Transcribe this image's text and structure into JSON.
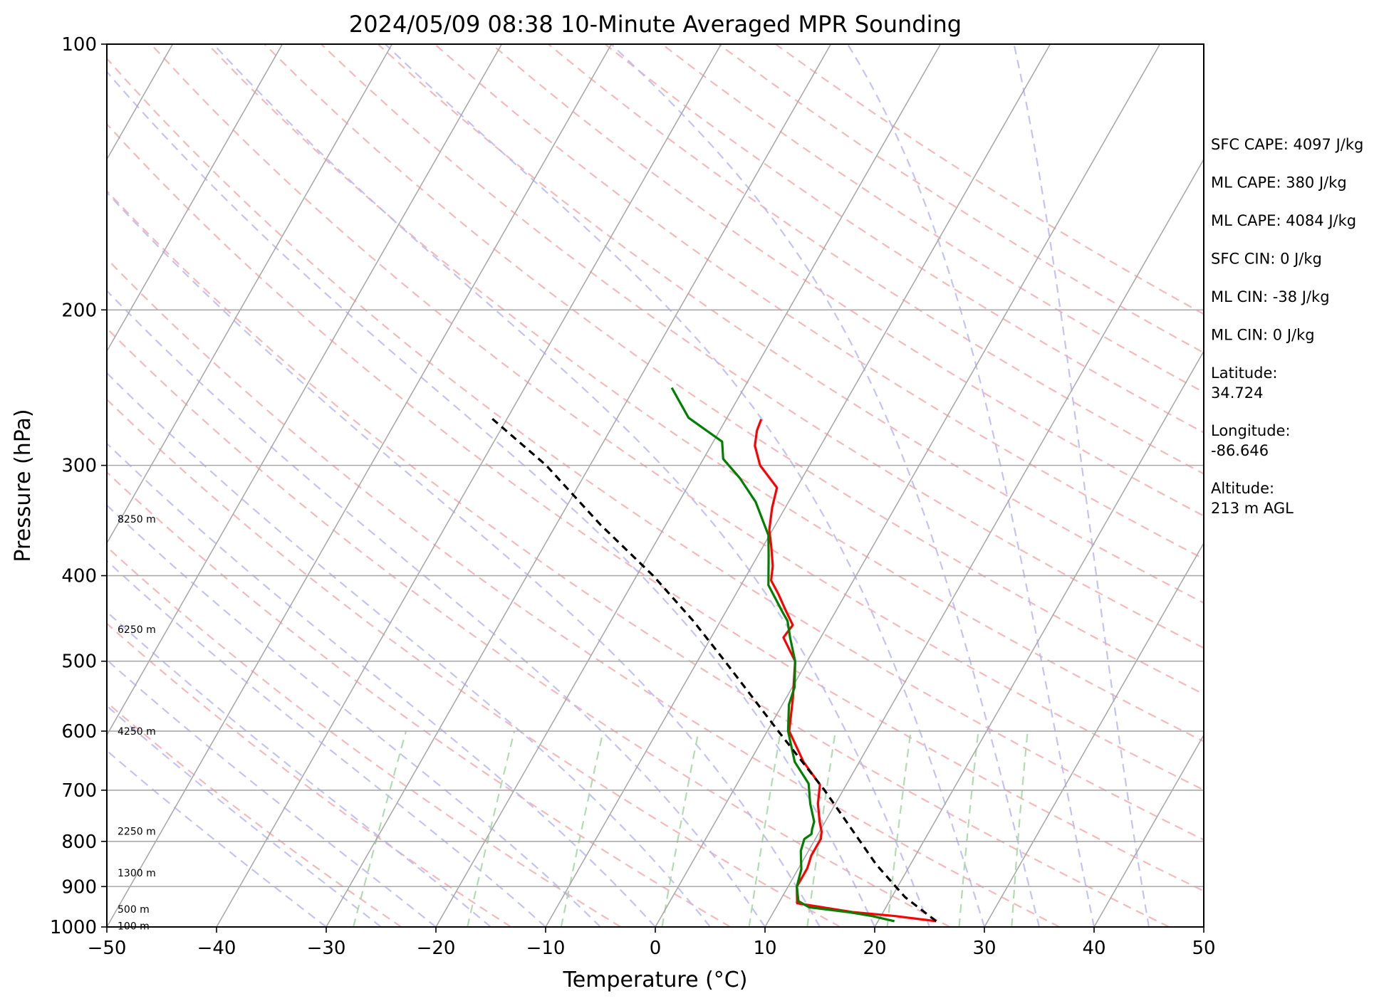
{
  "chart_data": {
    "type": "skew-t",
    "title": "2024/05/09 08:38 10-Minute Averaged MPR Sounding",
    "xlabel": "Temperature (°C)",
    "ylabel": "Pressure (hPa)",
    "xlim": [
      -50,
      50
    ],
    "ylim": [
      1000,
      100
    ],
    "y_scale": "log",
    "x_ticks": [
      "−50",
      "−40",
      "−30",
      "−20",
      "−10",
      "0",
      "10",
      "20",
      "30",
      "40",
      "50"
    ],
    "y_ticks": [
      "1000",
      "900",
      "800",
      "700",
      "600",
      "500",
      "400",
      "300",
      "200",
      "100"
    ],
    "grid": "isobars only",
    "background_lines": {
      "dry_adiabats": "dashed light red",
      "moist_adiabats": "dashed light blue",
      "mixing_ratio": "dashed light green",
      "isotherms": "solid gray, skewed"
    },
    "height_labels": [
      {
        "text": "100 m",
        "p": 997
      },
      {
        "text": "500 m",
        "p": 955
      },
      {
        "text": "1300 m",
        "p": 868
      },
      {
        "text": "2250 m",
        "p": 779
      },
      {
        "text": "4250 m",
        "p": 600
      },
      {
        "text": "6250 m",
        "p": 460
      },
      {
        "text": "8250 m",
        "p": 345
      }
    ],
    "series": [
      {
        "color": "#ff0000",
        "points": [
          [
            985,
            25.3
          ],
          [
            972,
            21.3
          ],
          [
            962,
            17.2
          ],
          [
            940,
            11.7
          ],
          [
            900,
            10.8
          ],
          [
            858,
            10.8
          ],
          [
            830,
            10.5
          ],
          [
            805,
            10.5
          ],
          [
            795,
            10.5
          ],
          [
            780,
            10.2
          ],
          [
            760,
            9.5
          ],
          [
            725,
            8.4
          ],
          [
            690,
            7.6
          ],
          [
            650,
            4.9
          ],
          [
            600,
            2.0
          ],
          [
            550,
            0.6
          ],
          [
            500,
            -1.1
          ],
          [
            470,
            -3.4
          ],
          [
            455,
            -3.2
          ],
          [
            438,
            -4.6
          ],
          [
            420,
            -6.1
          ],
          [
            405,
            -7.5
          ],
          [
            390,
            -8.1
          ],
          [
            370,
            -9.3
          ],
          [
            355,
            -10.3
          ],
          [
            335,
            -11.2
          ],
          [
            318,
            -11.8
          ],
          [
            300,
            -14.5
          ],
          [
            285,
            -16.0
          ],
          [
            274,
            -16.6
          ],
          [
            266,
            -16.8
          ]
        ]
      },
      {
        "color": "#008000",
        "points": [
          [
            985,
            21.5
          ],
          [
            972,
            19.2
          ],
          [
            962,
            16.8
          ],
          [
            950,
            13.0
          ],
          [
            935,
            11.7
          ],
          [
            900,
            10.8
          ],
          [
            860,
            10.3
          ],
          [
            840,
            9.8
          ],
          [
            820,
            9.3
          ],
          [
            795,
            9.0
          ],
          [
            785,
            9.4
          ],
          [
            775,
            9.2
          ],
          [
            760,
            9.0
          ],
          [
            725,
            7.7
          ],
          [
            688,
            6.5
          ],
          [
            650,
            4.1
          ],
          [
            600,
            1.9
          ],
          [
            560,
            0.6
          ],
          [
            535,
            0.2
          ],
          [
            500,
            -1.1
          ],
          [
            470,
            -2.8
          ],
          [
            450,
            -3.9
          ],
          [
            440,
            -4.8
          ],
          [
            410,
            -7.5
          ],
          [
            380,
            -9.0
          ],
          [
            360,
            -10.1
          ],
          [
            330,
            -13.0
          ],
          [
            310,
            -15.7
          ],
          [
            295,
            -18.2
          ],
          [
            282,
            -19.2
          ],
          [
            265,
            -23.5
          ],
          [
            245,
            -26.6
          ]
        ]
      },
      {
        "color": "#000000",
        "dashed": true,
        "points": [
          [
            985,
            25.3
          ],
          [
            925,
            21.2
          ],
          [
            850,
            16.9
          ],
          [
            700,
            8.3
          ],
          [
            600,
            1.0
          ],
          [
            500,
            -7.5
          ],
          [
            450,
            -12.5
          ],
          [
            400,
            -18.5
          ],
          [
            350,
            -26.0
          ],
          [
            300,
            -34.0
          ],
          [
            265,
            -41.5
          ]
        ]
      }
    ],
    "annotations": [
      "SFC CAPE: 4097 J/kg",
      "ML CAPE: 380 J/kg",
      "ML CAPE: 4084 J/kg",
      "SFC CIN: 0 J/kg",
      "ML CIN: -38 J/kg",
      "ML CIN: 0 J/kg",
      [
        "Latitude:",
        "34.724"
      ],
      [
        "Longitude:",
        "-86.646"
      ],
      [
        "Altitude:",
        "213 m AGL"
      ]
    ]
  }
}
